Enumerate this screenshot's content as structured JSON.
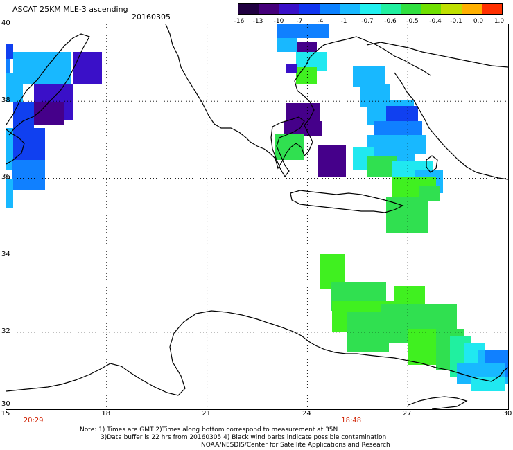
{
  "header": {
    "title": "ASCAT 25KM MLE-3 ascending",
    "date": "20160305"
  },
  "colorbar": {
    "labels": [
      "-16",
      "-13",
      "-10",
      "-7",
      "-4",
      "-1",
      "-0.7",
      "-0.6",
      "-0.5",
      "-0.4",
      "-0.1",
      "0.0",
      "1.0"
    ],
    "colors": [
      "#200040",
      "#45007a",
      "#3a10c8",
      "#1035f0",
      "#0a80ff",
      "#18b8ff",
      "#20f0f0",
      "#20f0a0",
      "#30e040",
      "#70e000",
      "#c0e000",
      "#ffb000",
      "#ff3000"
    ]
  },
  "map": {
    "lat_labels": [
      "40",
      "38",
      "36",
      "34",
      "32",
      "30"
    ],
    "lon_labels": [
      "15",
      "18",
      "21",
      "24",
      "27",
      "30"
    ],
    "time_labels": [
      {
        "lon": 15.5,
        "text": "20:29"
      },
      {
        "lon": 25.0,
        "text": "18:48"
      }
    ],
    "colors": {
      "navy": "#3a10c8",
      "indigo": "#45008a",
      "blue": "#1040f0",
      "mid_blue": "#1080ff",
      "light_blue": "#18b8ff",
      "cyan": "#20e8f0",
      "sea_green": "#20f0a0",
      "green": "#30e050",
      "bright_green": "#40f020"
    }
  },
  "notes": {
    "line1": "Note: 1) Times are GMT 2)Times along bottom correspond to measurement at 35N",
    "line2": "3)Data buffer is 22 hrs from 20160305 4) Black wind barbs indicate possible contamination",
    "line3": "NOAA/NESDIS/Center for Satellite Applications and Research"
  }
}
